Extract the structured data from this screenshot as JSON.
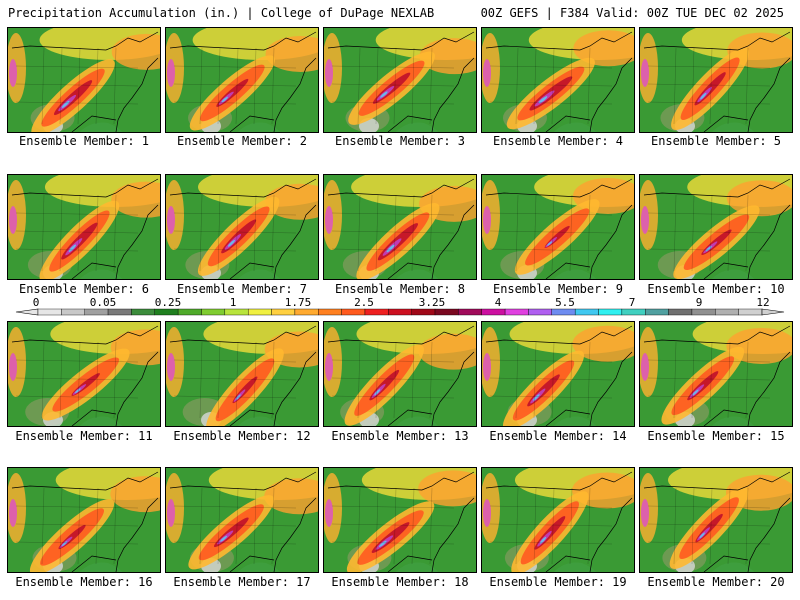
{
  "header": {
    "left": "Precipitation Accumulation (in.) | College of DuPage NEXLAB",
    "right": "00Z GEFS | F384 Valid: 00Z TUE DEC 02 2025"
  },
  "panel_label_prefix": "Ensemble Member: ",
  "members": [
    {
      "label": "Ensemble Member: 1",
      "intensity": 0.85
    },
    {
      "label": "Ensemble Member: 2",
      "intensity": 0.7
    },
    {
      "label": "Ensemble Member: 3",
      "intensity": 0.8
    },
    {
      "label": "Ensemble Member: 4",
      "intensity": 0.9
    },
    {
      "label": "Ensemble Member: 5",
      "intensity": 0.75
    },
    {
      "label": "Ensemble Member: 6",
      "intensity": 0.85
    },
    {
      "label": "Ensemble Member: 7",
      "intensity": 0.8
    },
    {
      "label": "Ensemble Member: 8",
      "intensity": 0.9
    },
    {
      "label": "Ensemble Member: 9",
      "intensity": 0.55
    },
    {
      "label": "Ensemble Member: 10",
      "intensity": 0.65
    },
    {
      "label": "Ensemble Member: 11",
      "intensity": 0.6
    },
    {
      "label": "Ensemble Member: 12",
      "intensity": 0.6
    },
    {
      "label": "Ensemble Member: 13",
      "intensity": 0.7
    },
    {
      "label": "Ensemble Member: 14",
      "intensity": 0.75
    },
    {
      "label": "Ensemble Member: 15",
      "intensity": 0.7
    },
    {
      "label": "Ensemble Member: 16",
      "intensity": 0.6
    },
    {
      "label": "Ensemble Member: 17",
      "intensity": 0.75
    },
    {
      "label": "Ensemble Member: 18",
      "intensity": 0.8
    },
    {
      "label": "Ensemble Member: 19",
      "intensity": 0.75
    },
    {
      "label": "Ensemble Member: 20",
      "intensity": 0.65
    }
  ],
  "colorbar": {
    "tick_labels": [
      "0",
      "0.05",
      "0.25",
      "1",
      "1.75",
      "2.5",
      "3.25",
      "4",
      "5.5",
      "7",
      "9",
      "12"
    ],
    "colors": [
      "#e6e6e6",
      "#c8c8c8",
      "#a0a0a0",
      "#7a7a7a",
      "#3c8c3c",
      "#1f7f1f",
      "#4faa2a",
      "#7fcc30",
      "#b8e43c",
      "#f0f040",
      "#ffd040",
      "#ffaa30",
      "#ff8020",
      "#ff5a1e",
      "#ee2020",
      "#cc1020",
      "#a00818",
      "#7a0820",
      "#a00a5a",
      "#cc10a0",
      "#e040e0",
      "#b060f0",
      "#6e8cf0",
      "#40c8f0",
      "#30f0f0",
      "#40d0c0",
      "#50a0a0",
      "#707070",
      "#909090",
      "#b0b0b0",
      "#d0d0d0"
    ]
  }
}
